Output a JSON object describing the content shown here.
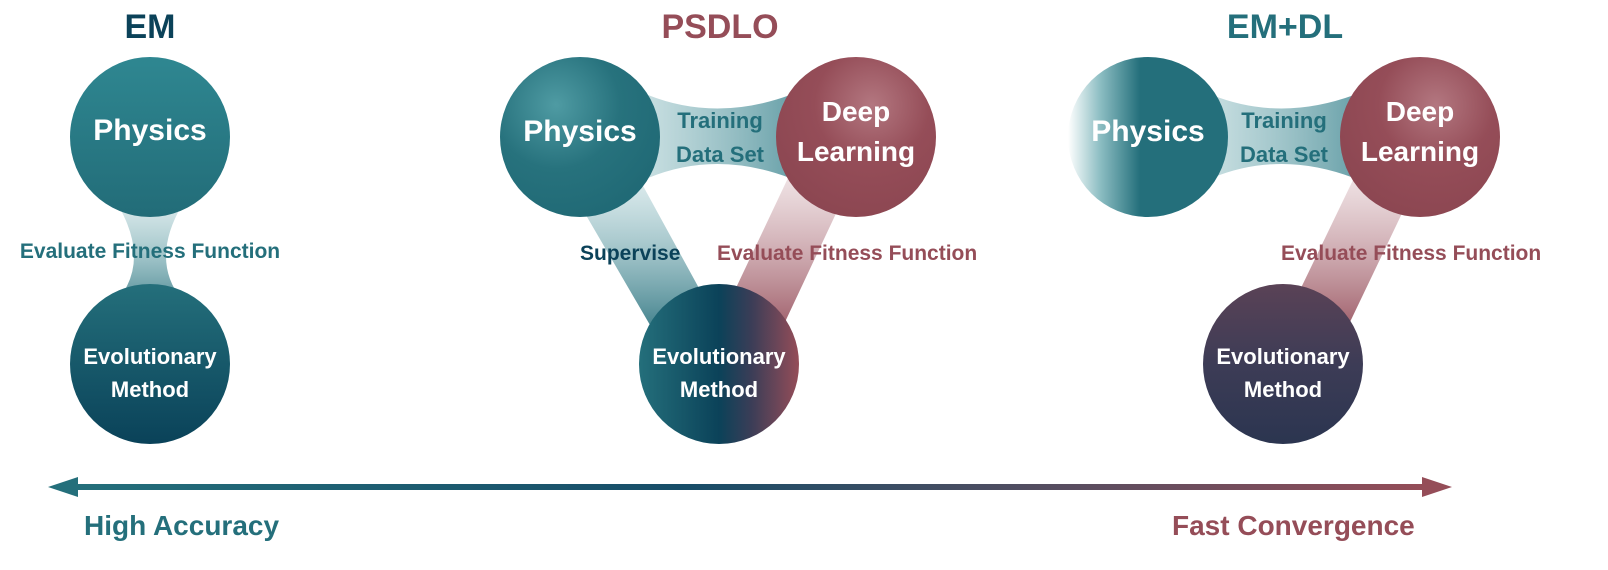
{
  "colors": {
    "teal": "#246f7b",
    "teal_light": "#3a8c95",
    "navy": "#083e57",
    "maroon": "#954d58",
    "dark_mix": "#3c3d56",
    "bottom_blue": "#174d68"
  },
  "panels": {
    "em": {
      "title": "EM",
      "physics": "Physics",
      "evaluate": "Evaluate Fitness Function",
      "evo_line1": "Evolutionary",
      "evo_line2": "Method"
    },
    "psdlo": {
      "title": "PSDLO",
      "physics": "Physics",
      "training_line1": "Training",
      "training_line2": "Data Set",
      "deep_line1": "Deep",
      "deep_line2": "Learning",
      "supervise": "Supervise",
      "evaluate": "Evaluate Fitness Function",
      "evo_line1": "Evolutionary",
      "evo_line2": "Method"
    },
    "emdl": {
      "title": "EM+DL",
      "physics": "Physics",
      "training_line1": "Training",
      "training_line2": "Data Set",
      "deep_line1": "Deep",
      "deep_line2": "Learning",
      "evaluate": "Evaluate Fitness Function",
      "evo_line1": "Evolutionary",
      "evo_line2": "Method"
    }
  },
  "axis": {
    "left_label": "High Accuracy",
    "right_label": "Fast Convergence"
  }
}
